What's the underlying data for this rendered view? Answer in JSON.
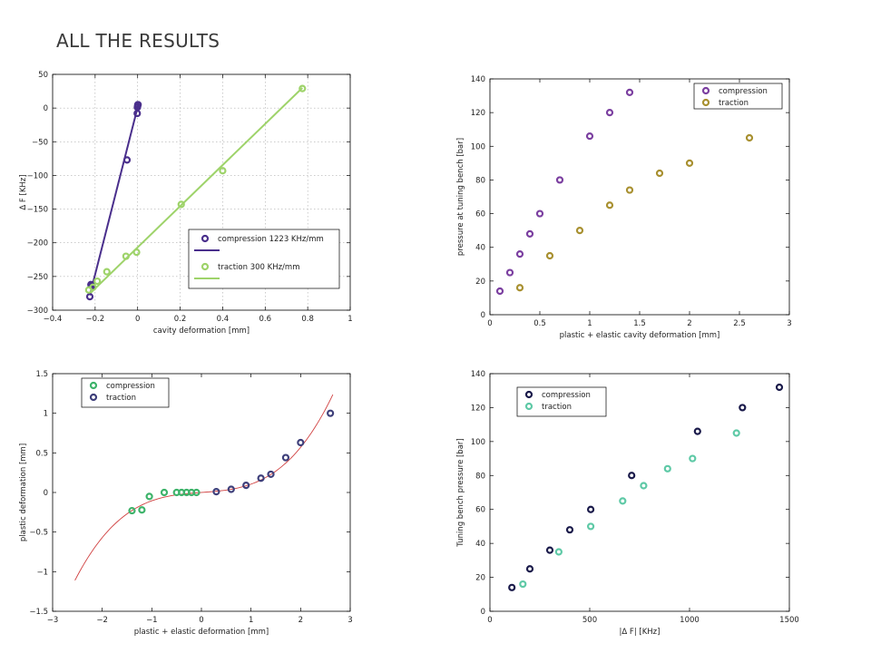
{
  "page": {
    "title": "ALL THE RESULTS"
  },
  "chart_data": [
    {
      "type": "scatter",
      "xlabel": "cavity deformation [mm]",
      "ylabel": "Δ F [KHz]",
      "xlim": [
        -0.4,
        1.0
      ],
      "ylim": [
        -300,
        50
      ],
      "xticks": [
        -0.4,
        -0.2,
        0,
        0.2,
        0.4,
        0.6,
        0.8,
        1
      ],
      "xtick_labels": [
        "−0.4",
        "−0.2",
        "0",
        "0.2",
        "0.4",
        "0.6",
        "0.8",
        "1"
      ],
      "yticks": [
        -300,
        -250,
        -200,
        -150,
        -100,
        -50,
        0,
        50
      ],
      "ytick_labels": [
        "−300",
        "−250",
        "−200",
        "−150",
        "−100",
        "−50",
        "0",
        "50"
      ],
      "grid": true,
      "legend_position": "bottom-right",
      "series": [
        {
          "name": "compression 1223 KHz/mm",
          "fit_label": "",
          "color": "#4a2f8c",
          "points": [
            [
              -0.225,
              -280
            ],
            [
              -0.22,
              -262
            ],
            [
              -0.215,
              -264
            ],
            [
              -0.05,
              -77
            ],
            [
              -0.002,
              -8
            ],
            [
              -0.001,
              1
            ],
            [
              0,
              3
            ],
            [
              0.001,
              5
            ],
            [
              0.002,
              5
            ]
          ],
          "fit": [
            [
              -0.225,
              -278
            ],
            [
              0.003,
              5
            ]
          ]
        },
        {
          "name": "traction 300 KHz/mm",
          "fit_label": "",
          "color": "#9ed36a",
          "points": [
            [
              -0.23,
              -270
            ],
            [
              -0.21,
              -266
            ],
            [
              -0.19,
              -257
            ],
            [
              -0.145,
              -243
            ],
            [
              -0.055,
              -220
            ],
            [
              -0.005,
              -214
            ],
            [
              0.205,
              -143
            ],
            [
              0.4,
              -93
            ],
            [
              0.775,
              29
            ]
          ],
          "fit": [
            [
              -0.23,
              -277
            ],
            [
              0.775,
              30
            ]
          ]
        }
      ]
    },
    {
      "type": "scatter",
      "xlabel": "plastic + elastic cavity deformation [mm]",
      "ylabel": "pressure at tuning bench [bar]",
      "xlim": [
        0,
        3
      ],
      "ylim": [
        0,
        140
      ],
      "xticks": [
        0,
        0.5,
        1,
        1.5,
        2,
        2.5,
        3
      ],
      "xtick_labels": [
        "0",
        "0.5",
        "1",
        "1.5",
        "2",
        "2.5",
        "3"
      ],
      "yticks": [
        0,
        20,
        40,
        60,
        80,
        100,
        120,
        140
      ],
      "ytick_labels": [
        "0",
        "20",
        "40",
        "60",
        "80",
        "100",
        "120",
        "140"
      ],
      "grid": false,
      "legend_position": "top-right",
      "series": [
        {
          "name": "compression",
          "color": "#7b3fa0",
          "points": [
            [
              0.1,
              14
            ],
            [
              0.2,
              25
            ],
            [
              0.3,
              36
            ],
            [
              0.4,
              48
            ],
            [
              0.5,
              60
            ],
            [
              0.7,
              80
            ],
            [
              1.0,
              106
            ],
            [
              1.2,
              120
            ],
            [
              1.4,
              132
            ]
          ]
        },
        {
          "name": "traction",
          "color": "#a89030",
          "points": [
            [
              0.3,
              16
            ],
            [
              0.6,
              35
            ],
            [
              0.9,
              50
            ],
            [
              1.2,
              65
            ],
            [
              1.4,
              74
            ],
            [
              1.7,
              84
            ],
            [
              2.0,
              90
            ],
            [
              2.6,
              105
            ]
          ]
        }
      ]
    },
    {
      "type": "scatter",
      "xlabel": "plastic + elastic deformation [mm]",
      "ylabel": "plastic deformation [mm]",
      "xlim": [
        -3,
        3
      ],
      "ylim": [
        -1.5,
        1.5
      ],
      "xticks": [
        -3,
        -2,
        -1,
        0,
        1,
        2,
        3
      ],
      "xtick_labels": [
        "−3",
        "−2",
        "−1",
        "0",
        "1",
        "2",
        "3"
      ],
      "yticks": [
        -1.5,
        -1,
        -0.5,
        0,
        0.5,
        1,
        1.5
      ],
      "ytick_labels": [
        "−1.5",
        "−1",
        "−0.5",
        "0",
        "0.5",
        "1",
        "1.5"
      ],
      "grid": false,
      "legend_position": "top-left",
      "fit_color": "#d04040",
      "fit_curve": {
        "x_range": [
          -2.55,
          2.65
        ],
        "coefficients": {
          "x": 0.045,
          "x3": 0.06
        }
      },
      "series": [
        {
          "name": "compression",
          "color": "#3db36a",
          "points": [
            [
              -1.4,
              -0.23
            ],
            [
              -1.2,
              -0.22
            ],
            [
              -1.05,
              -0.05
            ],
            [
              -0.75,
              0.0
            ],
            [
              -0.5,
              0.0
            ],
            [
              -0.4,
              0.0
            ],
            [
              -0.3,
              0.0
            ],
            [
              -0.2,
              0.0
            ],
            [
              -0.1,
              0.0
            ]
          ]
        },
        {
          "name": "traction",
          "color": "#3e3f7a",
          "points": [
            [
              0.3,
              0.01
            ],
            [
              0.6,
              0.04
            ],
            [
              0.9,
              0.09
            ],
            [
              1.2,
              0.18
            ],
            [
              1.4,
              0.23
            ],
            [
              1.7,
              0.44
            ],
            [
              2.0,
              0.63
            ],
            [
              2.6,
              1.0
            ]
          ]
        }
      ]
    },
    {
      "type": "scatter",
      "xlabel": "|Δ F| [KHz]",
      "ylabel": "Tuning bench pressure [bar]",
      "xlim": [
        0,
        1500
      ],
      "ylim": [
        0,
        140
      ],
      "xticks": [
        0,
        500,
        1000,
        1500
      ],
      "xtick_labels": [
        "0",
        "500",
        "1000",
        "1500"
      ],
      "yticks": [
        0,
        20,
        40,
        60,
        80,
        100,
        120,
        140
      ],
      "ytick_labels": [
        "0",
        "20",
        "40",
        "60",
        "80",
        "100",
        "120",
        "140"
      ],
      "grid": false,
      "legend_position": "top-left",
      "series": [
        {
          "name": "compression",
          "color": "#1a1a4a",
          "points": [
            [
              110,
              14
            ],
            [
              200,
              25
            ],
            [
              300,
              36
            ],
            [
              400,
              48
            ],
            [
              505,
              60
            ],
            [
              710,
              80
            ],
            [
              1040,
              106
            ],
            [
              1265,
              120
            ],
            [
              1450,
              132
            ]
          ]
        },
        {
          "name": "traction",
          "color": "#5ec9a6",
          "points": [
            [
              165,
              16
            ],
            [
              345,
              35
            ],
            [
              505,
              50
            ],
            [
              665,
              65
            ],
            [
              770,
              74
            ],
            [
              890,
              84
            ],
            [
              1015,
              90
            ],
            [
              1235,
              105
            ]
          ]
        }
      ]
    }
  ]
}
